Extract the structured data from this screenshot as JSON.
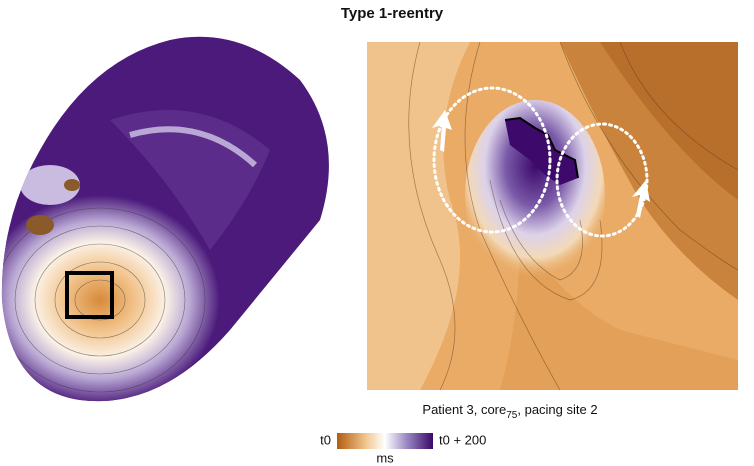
{
  "title": "Type 1-reentry",
  "caption": {
    "prefix": "Patient 3, core",
    "subscript": "75",
    "suffix": ", pacing site 2"
  },
  "colorbar": {
    "min_label": "t0",
    "max_label": "t0 + 200",
    "unit": "ms"
  }
}
